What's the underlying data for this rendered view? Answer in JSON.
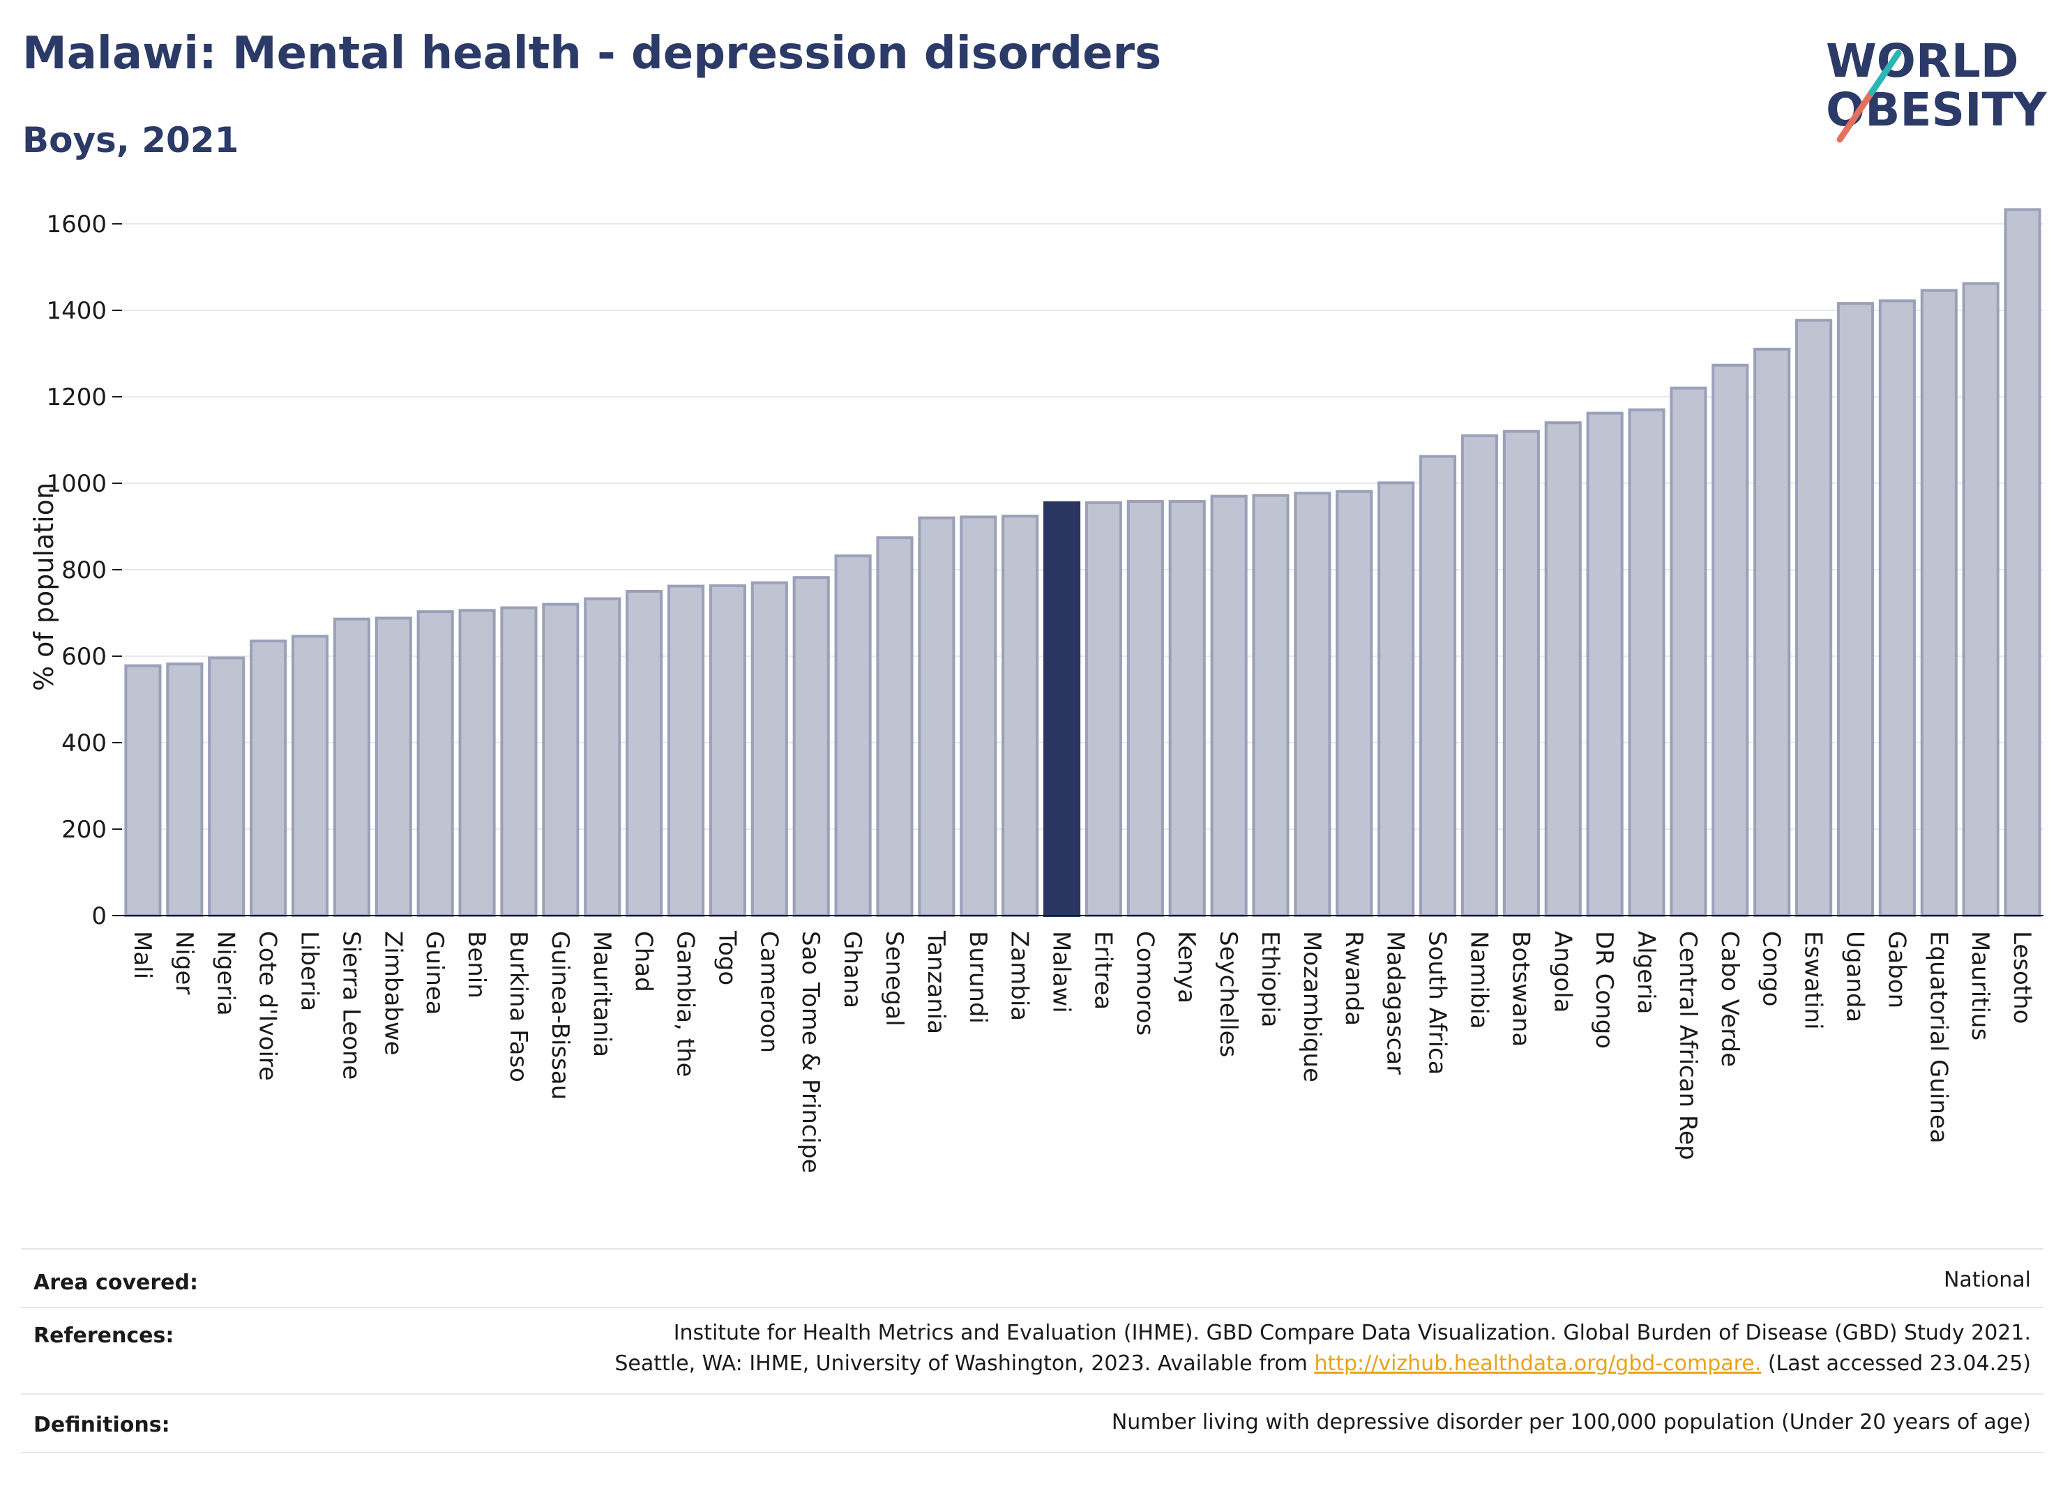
{
  "header": {
    "title": "Malawi: Mental health - depression disorders",
    "subtitle": "Boys, 2021"
  },
  "logo": {
    "line1": "WORLD",
    "line2": "OBESITY",
    "accent_colors": [
      "#e5705f",
      "#2bb5b5"
    ]
  },
  "colors": {
    "bar": "#bfc3d2",
    "bar_stroke": "#9aa0b8",
    "highlight": "#2a3560",
    "grid": "#e6e8ef",
    "text": "#1a1a1a",
    "title": "#2b3a67",
    "link": "#e8a317"
  },
  "chart_data": {
    "type": "bar",
    "title": "Malawi: Mental health - depression disorders",
    "subtitle": "Boys, 2021",
    "xlabel": "",
    "ylabel": "% of population",
    "ylim": [
      0,
      1650
    ],
    "yticks": [
      0,
      200,
      400,
      600,
      800,
      1000,
      1200,
      1400,
      1600
    ],
    "grid": true,
    "highlight": "Malawi",
    "categories": [
      "Mali",
      "Niger",
      "Nigeria",
      "Cote d'Ivoire",
      "Liberia",
      "Sierra Leone",
      "Zimbabwe",
      "Guinea",
      "Benin",
      "Burkina Faso",
      "Guinea-Bissau",
      "Mauritania",
      "Chad",
      "Gambia, the",
      "Togo",
      "Cameroon",
      "Sao Tome & Principe",
      "Ghana",
      "Senegal",
      "Tanzania",
      "Burundi",
      "Zambia",
      "Malawi",
      "Eritrea",
      "Comoros",
      "Kenya",
      "Seychelles",
      "Ethiopia",
      "Mozambique",
      "Rwanda",
      "Madagascar",
      "South Africa",
      "Namibia",
      "Botswana",
      "Angola",
      "DR Congo",
      "Algeria",
      "Central African Rep",
      "Cabo Verde",
      "Congo",
      "Eswatini",
      "Uganda",
      "Gabon",
      "Equatorial Guinea",
      "Mauritius",
      "Lesotho"
    ],
    "values": [
      578,
      582,
      596,
      635,
      646,
      686,
      688,
      703,
      706,
      712,
      720,
      733,
      750,
      762,
      763,
      770,
      782,
      832,
      874,
      920,
      922,
      924,
      955,
      955,
      958,
      958,
      970,
      972,
      977,
      981,
      1001,
      1062,
      1110,
      1120,
      1140,
      1162,
      1170,
      1220,
      1273,
      1310,
      1377,
      1416,
      1422,
      1446,
      1462,
      1633
    ]
  },
  "info": {
    "area_label": "Area covered:",
    "area_value": "National",
    "references_label": "References:",
    "references_line1": "Institute for Health Metrics and Evaluation (IHME). GBD Compare Data Visualization. Global Burden of Disease (GBD) Study 2021.",
    "references_line2_pre": "Seattle, WA: IHME, University of Washington, 2023. Available from ",
    "references_link": "http://vizhub.healthdata.org/gbd-compare.",
    "references_line2_post": " (Last accessed 23.04.25)",
    "definitions_label": "Definitions:",
    "definitions_value": "Number living with depressive disorder per 100,000 population (Under 20 years of age)"
  }
}
